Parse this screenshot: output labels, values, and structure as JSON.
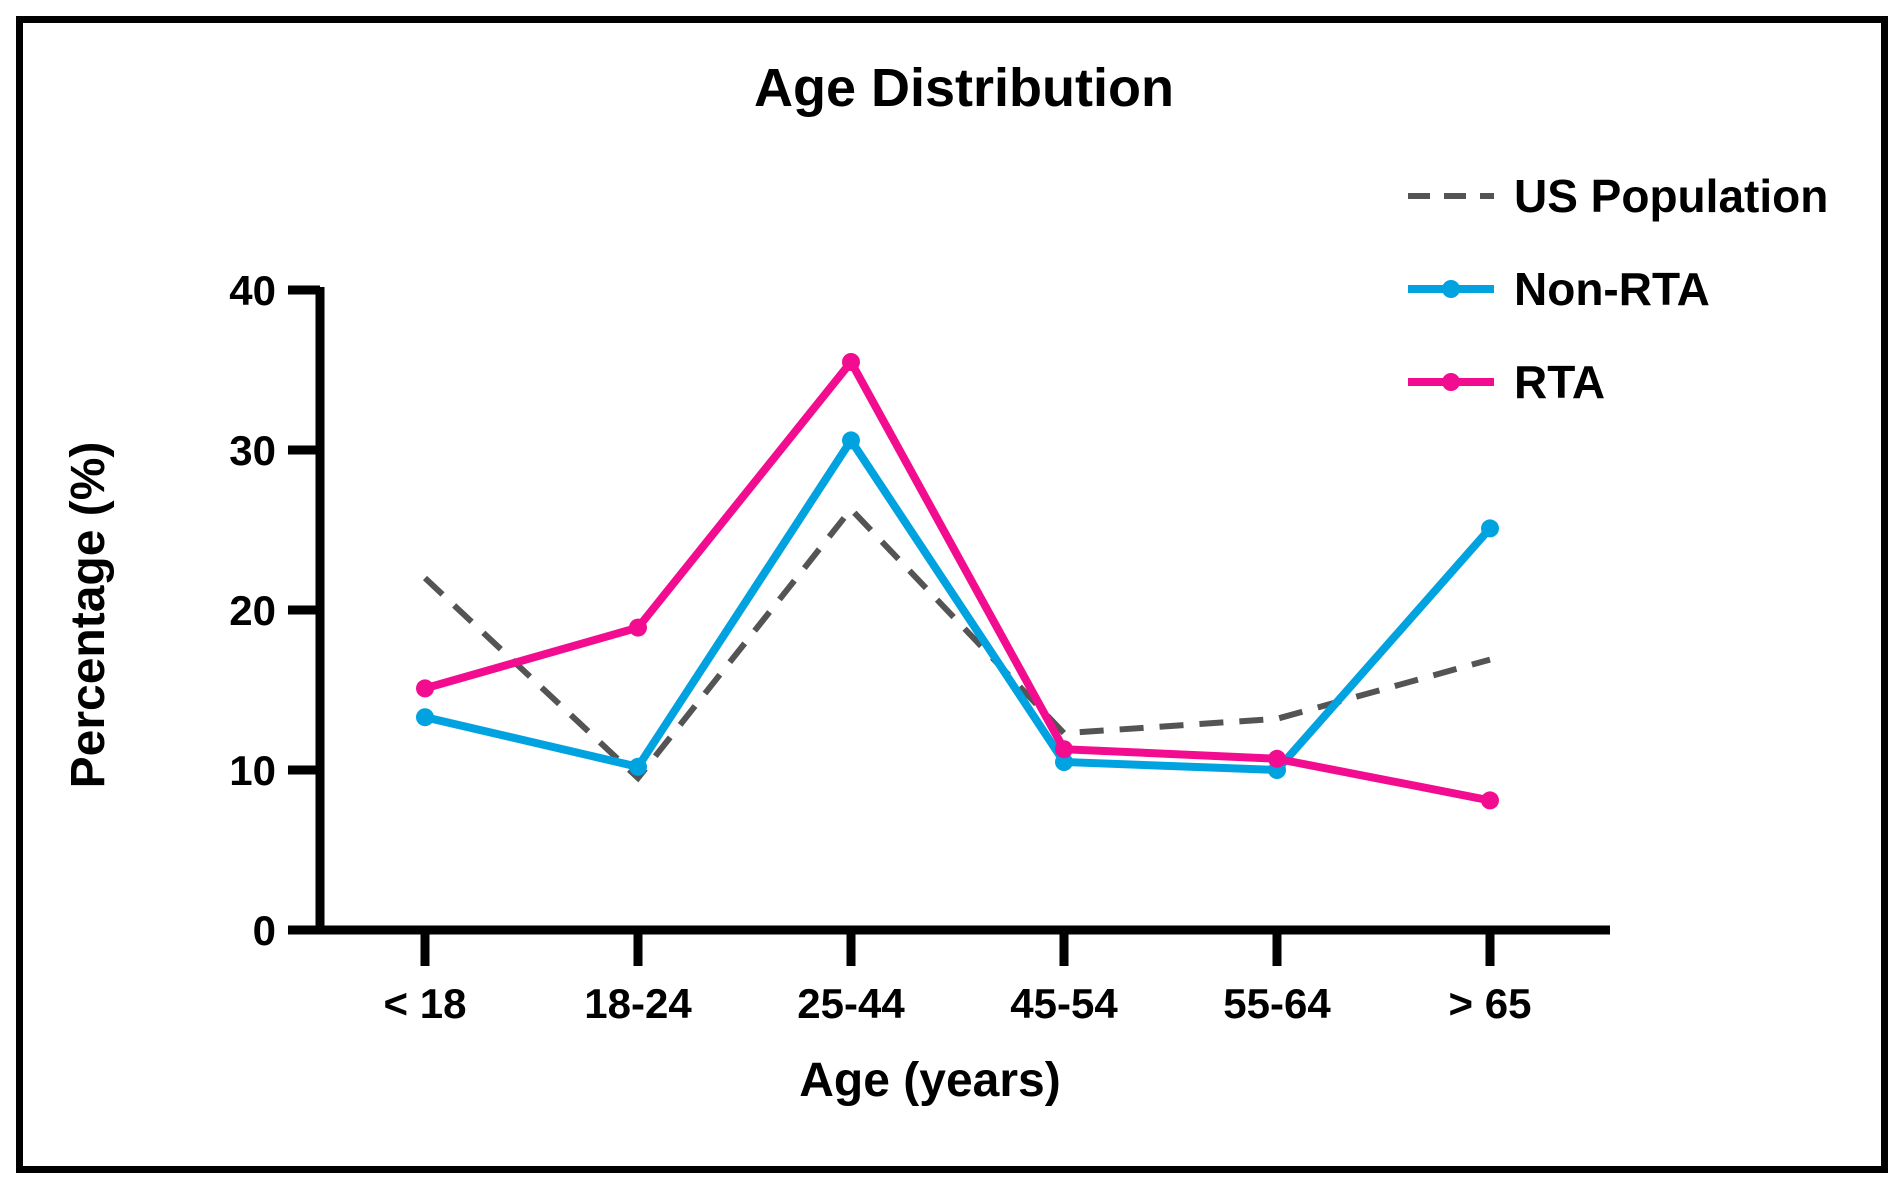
{
  "title": "Age Distribution",
  "colors": {
    "us_population": "#545454",
    "non_rta": "#00A3E0",
    "rta": "#F20D90",
    "axis": "#000000",
    "background": "#ffffff"
  },
  "chart_data": {
    "type": "line",
    "title": "Age Distribution",
    "xlabel": "Age (years)",
    "ylabel": "Percentage (%)",
    "categories": [
      "< 18",
      "18-24",
      "25-44",
      "45-54",
      "55-64",
      "> 65"
    ],
    "series": [
      {
        "name": "US Population",
        "values": [
          22,
          9.5,
          26.3,
          12.3,
          13.2,
          16.9
        ],
        "color": "#545454",
        "style": "dashed",
        "marker": false
      },
      {
        "name": "Non-RTA",
        "values": [
          13.3,
          10.2,
          30.6,
          10.5,
          10,
          25.1
        ],
        "color": "#00A3E0",
        "style": "solid",
        "marker": true
      },
      {
        "name": "RTA",
        "values": [
          15.1,
          18.9,
          35.5,
          11.3,
          10.7,
          8.1
        ],
        "color": "#F20D90",
        "style": "solid",
        "marker": true
      }
    ],
    "yticks": [
      0,
      10,
      20,
      30,
      40
    ],
    "ylim": [
      0,
      40
    ],
    "grid": false,
    "legend_position": "top-right"
  }
}
